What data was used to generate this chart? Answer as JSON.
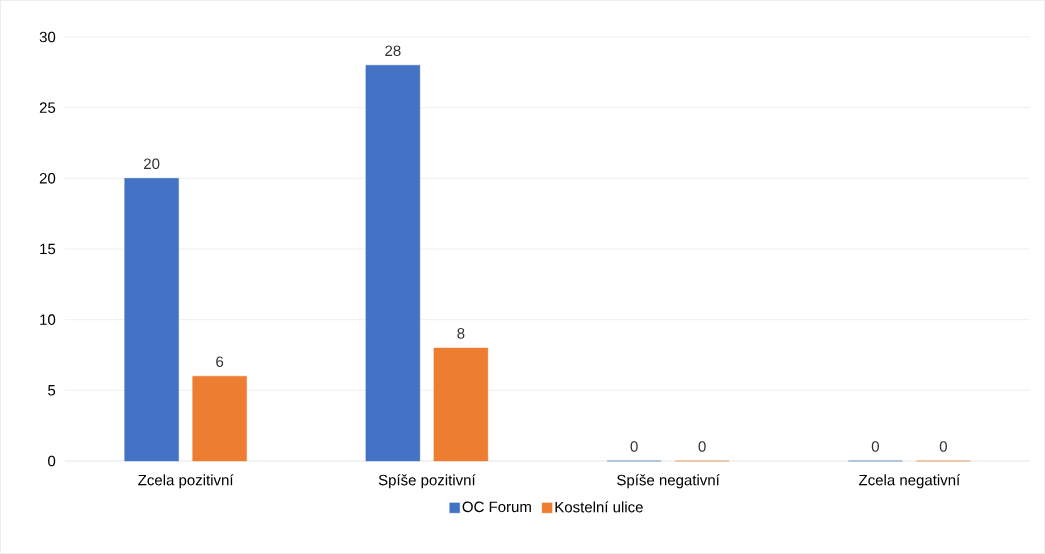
{
  "chart_data": {
    "type": "bar",
    "categories": [
      "Zcela pozitivní",
      "Spíše pozitivní",
      "Spíše negativní",
      "Zcela negativní"
    ],
    "series": [
      {
        "name": "OC Forum",
        "color": "#4472c4",
        "values": [
          20,
          28,
          0,
          0
        ]
      },
      {
        "name": "Kostelní ulice",
        "color": "#ed7d31",
        "values": [
          6,
          8,
          0,
          0
        ]
      }
    ],
    "ylim": [
      0,
      30
    ],
    "yticks": [
      0,
      5,
      10,
      15,
      20,
      25,
      30
    ],
    "grid": "y",
    "legend": "bottom",
    "data_labels": true
  }
}
